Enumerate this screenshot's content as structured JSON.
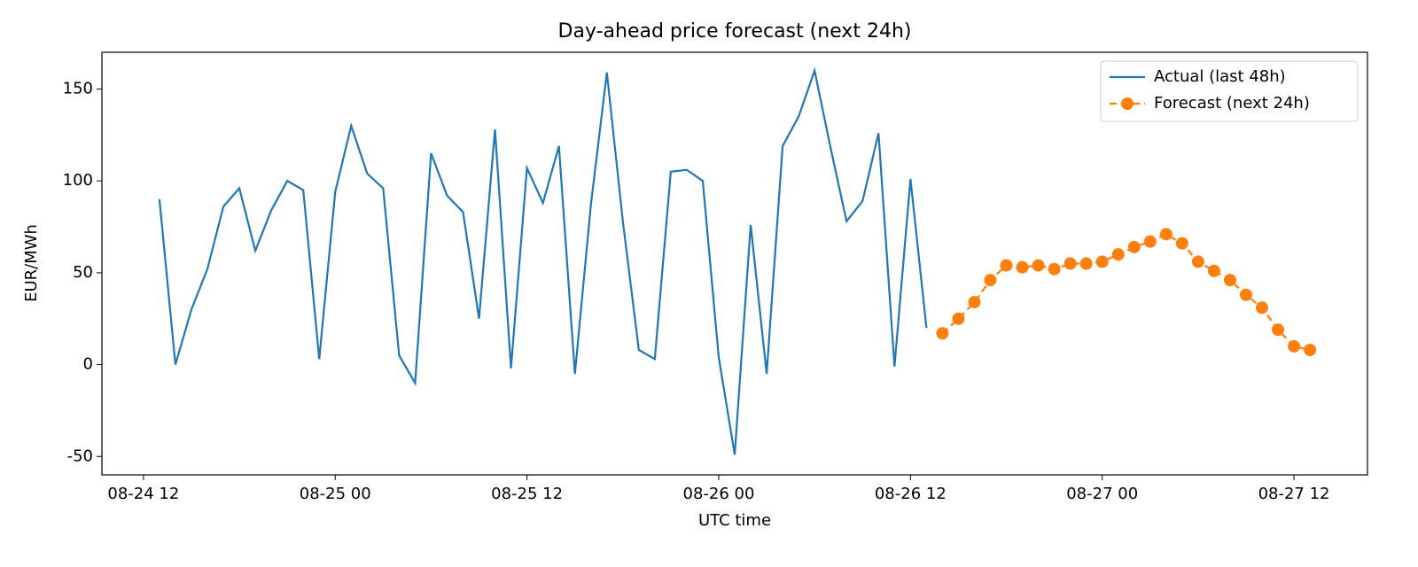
{
  "chart_data": {
    "type": "line",
    "title": "Day-ahead price forecast (next 24h)",
    "x_label": "UTC time",
    "y_label": "EUR/MWh",
    "x": [
      "08-24 13",
      "08-24 14",
      "08-24 15",
      "08-24 16",
      "08-24 17",
      "08-24 18",
      "08-24 19",
      "08-24 20",
      "08-24 21",
      "08-24 22",
      "08-24 23",
      "08-25 00",
      "08-25 01",
      "08-25 02",
      "08-25 03",
      "08-25 04",
      "08-25 05",
      "08-25 06",
      "08-25 07",
      "08-25 08",
      "08-25 09",
      "08-25 10",
      "08-25 11",
      "08-25 12",
      "08-25 13",
      "08-25 14",
      "08-25 15",
      "08-25 16",
      "08-25 17",
      "08-25 18",
      "08-25 19",
      "08-25 20",
      "08-25 21",
      "08-25 22",
      "08-25 23",
      "08-26 00",
      "08-26 01",
      "08-26 02",
      "08-26 03",
      "08-26 04",
      "08-26 05",
      "08-26 06",
      "08-26 07",
      "08-26 08",
      "08-26 09",
      "08-26 10",
      "08-26 11",
      "08-26 12",
      "08-26 13",
      "08-26 14",
      "08-26 15",
      "08-26 16",
      "08-26 17",
      "08-26 18",
      "08-26 19",
      "08-26 20",
      "08-26 21",
      "08-26 22",
      "08-26 23",
      "08-27 00",
      "08-27 01",
      "08-27 02",
      "08-27 03",
      "08-27 04",
      "08-27 05",
      "08-27 06",
      "08-27 07",
      "08-27 08",
      "08-27 09",
      "08-27 10",
      "08-27 11",
      "08-27 12",
      "08-27 13"
    ],
    "series": [
      {
        "name": "Actual (last 48h)",
        "color": "#1f77b4",
        "linestyle": "solid",
        "marker": "none",
        "values": [
          90,
          0,
          30,
          52,
          86,
          96,
          62,
          84,
          100,
          95,
          3,
          94,
          130,
          104,
          96,
          5,
          -10,
          115,
          92,
          83,
          25,
          128,
          -2,
          107,
          88,
          119,
          -5,
          87,
          159,
          78,
          8,
          3,
          105,
          106,
          100,
          4,
          -49,
          76,
          -5,
          119,
          135,
          160,
          118,
          78,
          89,
          126,
          -1,
          101,
          20,
          null,
          null,
          null,
          null,
          null,
          null,
          null,
          null,
          null,
          null,
          null,
          null,
          null,
          null,
          null,
          null,
          null,
          null,
          null,
          null,
          null,
          null,
          null,
          null
        ]
      },
      {
        "name": "Forecast (next 24h)",
        "color": "#ff7f0e",
        "linestyle": "dashed",
        "marker": "circle",
        "values": [
          null,
          null,
          null,
          null,
          null,
          null,
          null,
          null,
          null,
          null,
          null,
          null,
          null,
          null,
          null,
          null,
          null,
          null,
          null,
          null,
          null,
          null,
          null,
          null,
          null,
          null,
          null,
          null,
          null,
          null,
          null,
          null,
          null,
          null,
          null,
          null,
          null,
          null,
          null,
          null,
          null,
          null,
          null,
          null,
          null,
          null,
          null,
          null,
          null,
          17,
          25,
          34,
          46,
          54,
          53,
          54,
          52,
          55,
          55,
          56,
          60,
          64,
          67,
          71,
          66,
          56,
          51,
          46,
          38,
          31,
          19,
          10,
          8
        ]
      }
    ],
    "xlim": [
      "08-24 09:24",
      "08-27 16:36"
    ],
    "xticks": [
      "08-24 12",
      "08-25 00",
      "08-25 12",
      "08-26 00",
      "08-26 12",
      "08-27 00",
      "08-27 12"
    ],
    "ylim": [
      -60,
      170
    ],
    "yticks": [
      -50,
      0,
      50,
      100,
      150
    ],
    "grid": false,
    "legend": "upper right"
  }
}
